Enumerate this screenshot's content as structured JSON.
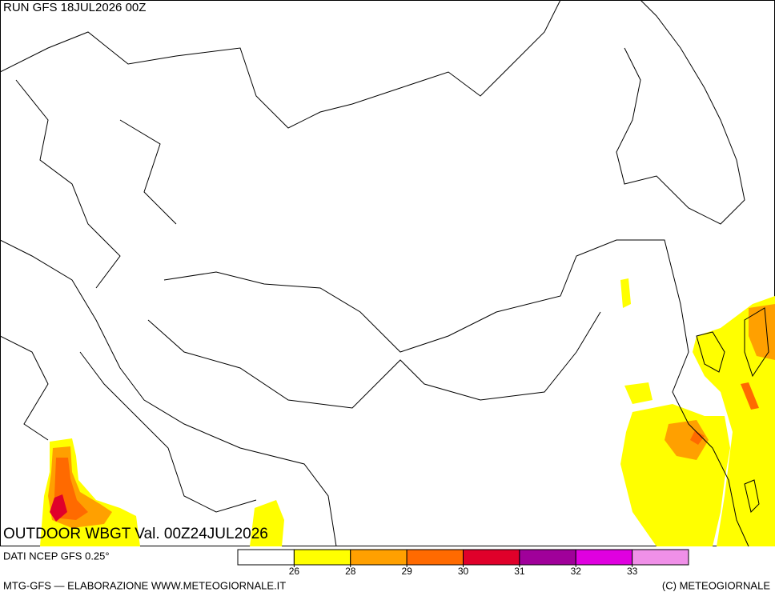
{
  "header": {
    "run": "RUN GFS 18JUL2026 00Z"
  },
  "map": {
    "title": "OUTDOOR WBGT Val. 00Z24JUL2026"
  },
  "legend": {
    "colors": [
      "#ffffff",
      "#ffff00",
      "#ffa000",
      "#ff6a00",
      "#e0002a",
      "#a0009a",
      "#e000e0",
      "#f090e8"
    ],
    "ticks": [
      26,
      28,
      29,
      30,
      31,
      32,
      33
    ]
  },
  "footer": {
    "source": "DATI NCEP GFS 0.25°",
    "credit": "MTG-GFS — ELABORAZIONE WWW.METEOGIORNALE.IT",
    "copyright": "(C) METEOGIORNALE"
  }
}
